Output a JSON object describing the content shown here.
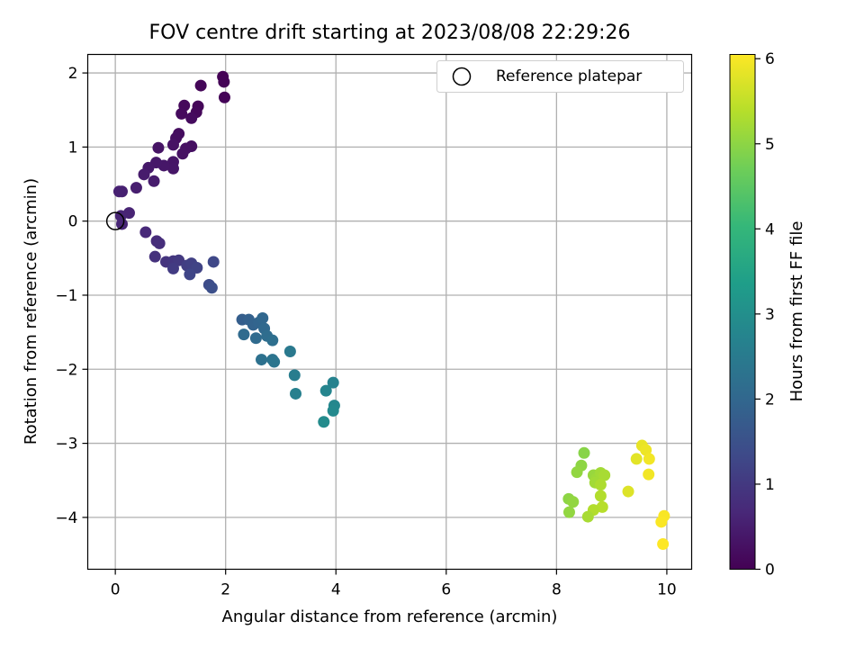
{
  "chart_data": {
    "type": "scatter",
    "title": "FOV centre drift starting at 2023/08/08 22:29:26",
    "xlabel": "Angular distance from reference (arcmin)",
    "ylabel": "Rotation from reference (arcmin)",
    "xlim": [
      -0.5,
      10.45
    ],
    "ylim": [
      -4.7,
      2.25
    ],
    "xticks": [
      0,
      2,
      4,
      6,
      8,
      10
    ],
    "yticks": [
      2,
      1,
      0,
      -1,
      -2,
      -3,
      -4
    ],
    "xtick_labels": [
      "0",
      "2",
      "4",
      "6",
      "8",
      "10"
    ],
    "ytick_labels": [
      "2",
      "1",
      "0",
      "−1",
      "−2",
      "−3",
      "−4"
    ],
    "grid": true,
    "legend": {
      "placement": "top-right",
      "entries": [
        "Reference platepar"
      ]
    },
    "reference_point": {
      "x": 0,
      "y": 0
    },
    "colorbar": {
      "label": "Hours from first FF file",
      "range": [
        0,
        6.05
      ],
      "ticks": [
        0,
        1,
        2,
        3,
        4,
        5,
        6
      ],
      "tick_labels": [
        "0",
        "1",
        "2",
        "3",
        "4",
        "5",
        "6"
      ],
      "colormap": "viridis"
    },
    "points": [
      {
        "x": 1.95,
        "y": 1.95,
        "t": 0.02
      },
      {
        "x": 1.97,
        "y": 1.88,
        "t": 0.04
      },
      {
        "x": 1.98,
        "y": 1.67,
        "t": 0.06
      },
      {
        "x": 1.55,
        "y": 1.83,
        "t": 0.08
      },
      {
        "x": 1.5,
        "y": 1.55,
        "t": 0.1
      },
      {
        "x": 1.47,
        "y": 1.47,
        "t": 0.12
      },
      {
        "x": 1.25,
        "y": 1.56,
        "t": 0.14
      },
      {
        "x": 1.2,
        "y": 1.45,
        "t": 0.16
      },
      {
        "x": 1.38,
        "y": 1.39,
        "t": 0.18
      },
      {
        "x": 1.15,
        "y": 1.18,
        "t": 0.2
      },
      {
        "x": 1.1,
        "y": 1.12,
        "t": 0.22
      },
      {
        "x": 1.38,
        "y": 1.01,
        "t": 0.24
      },
      {
        "x": 1.28,
        "y": 0.98,
        "t": 0.26
      },
      {
        "x": 1.22,
        "y": 0.91,
        "t": 0.28
      },
      {
        "x": 1.05,
        "y": 1.03,
        "t": 0.3
      },
      {
        "x": 0.78,
        "y": 0.99,
        "t": 0.32
      },
      {
        "x": 1.05,
        "y": 0.8,
        "t": 0.34
      },
      {
        "x": 1.05,
        "y": 0.71,
        "t": 0.36
      },
      {
        "x": 0.88,
        "y": 0.75,
        "t": 0.38
      },
      {
        "x": 0.74,
        "y": 0.79,
        "t": 0.4
      },
      {
        "x": 0.6,
        "y": 0.72,
        "t": 0.42
      },
      {
        "x": 0.52,
        "y": 0.63,
        "t": 0.44
      },
      {
        "x": 0.7,
        "y": 0.54,
        "t": 0.46
      },
      {
        "x": 0.38,
        "y": 0.45,
        "t": 0.5
      },
      {
        "x": 0.12,
        "y": 0.4,
        "t": 0.54
      },
      {
        "x": 0.07,
        "y": 0.4,
        "t": 0.56
      },
      {
        "x": 0.25,
        "y": 0.11,
        "t": 0.6
      },
      {
        "x": 0.1,
        "y": 0.07,
        "t": 0.62
      },
      {
        "x": 0.12,
        "y": -0.04,
        "t": 0.64
      },
      {
        "x": 0.55,
        "y": -0.15,
        "t": 0.7
      },
      {
        "x": 0.75,
        "y": -0.27,
        "t": 0.75
      },
      {
        "x": 0.8,
        "y": -0.3,
        "t": 0.8
      },
      {
        "x": 0.72,
        "y": -0.48,
        "t": 0.85
      },
      {
        "x": 0.92,
        "y": -0.55,
        "t": 0.9
      },
      {
        "x": 1.05,
        "y": -0.54,
        "t": 0.95
      },
      {
        "x": 1.15,
        "y": -0.53,
        "t": 1.0
      },
      {
        "x": 1.05,
        "y": -0.64,
        "t": 1.05
      },
      {
        "x": 1.3,
        "y": -0.6,
        "t": 1.1
      },
      {
        "x": 1.38,
        "y": -0.57,
        "t": 1.15
      },
      {
        "x": 1.48,
        "y": -0.63,
        "t": 1.2
      },
      {
        "x": 1.35,
        "y": -0.72,
        "t": 1.25
      },
      {
        "x": 1.78,
        "y": -0.55,
        "t": 1.3
      },
      {
        "x": 1.7,
        "y": -0.86,
        "t": 1.4
      },
      {
        "x": 1.75,
        "y": -0.9,
        "t": 1.45
      },
      {
        "x": 2.3,
        "y": -1.33,
        "t": 1.8
      },
      {
        "x": 2.42,
        "y": -1.33,
        "t": 1.85
      },
      {
        "x": 2.5,
        "y": -1.4,
        "t": 1.9
      },
      {
        "x": 2.6,
        "y": -1.37,
        "t": 1.95
      },
      {
        "x": 2.67,
        "y": -1.31,
        "t": 2.0
      },
      {
        "x": 2.7,
        "y": -1.45,
        "t": 2.05
      },
      {
        "x": 2.55,
        "y": -1.58,
        "t": 2.1
      },
      {
        "x": 2.33,
        "y": -1.53,
        "t": 2.1
      },
      {
        "x": 2.75,
        "y": -1.55,
        "t": 2.15
      },
      {
        "x": 2.85,
        "y": -1.61,
        "t": 2.2
      },
      {
        "x": 2.65,
        "y": -1.87,
        "t": 2.25
      },
      {
        "x": 2.85,
        "y": -1.87,
        "t": 2.3
      },
      {
        "x": 2.88,
        "y": -1.9,
        "t": 2.35
      },
      {
        "x": 3.17,
        "y": -1.76,
        "t": 2.45
      },
      {
        "x": 3.25,
        "y": -2.08,
        "t": 2.55
      },
      {
        "x": 3.27,
        "y": -2.33,
        "t": 2.65
      },
      {
        "x": 3.95,
        "y": -2.18,
        "t": 2.7
      },
      {
        "x": 3.82,
        "y": -2.29,
        "t": 2.75
      },
      {
        "x": 3.97,
        "y": -2.49,
        "t": 2.8
      },
      {
        "x": 3.95,
        "y": -2.56,
        "t": 2.85
      },
      {
        "x": 3.78,
        "y": -2.71,
        "t": 2.9
      },
      {
        "x": 8.5,
        "y": -3.13,
        "t": 4.95
      },
      {
        "x": 8.45,
        "y": -3.3,
        "t": 5.0
      },
      {
        "x": 8.37,
        "y": -3.39,
        "t": 5.05
      },
      {
        "x": 8.67,
        "y": -3.43,
        "t": 5.1
      },
      {
        "x": 8.72,
        "y": -3.48,
        "t": 5.15
      },
      {
        "x": 8.8,
        "y": -3.4,
        "t": 5.2
      },
      {
        "x": 8.87,
        "y": -3.43,
        "t": 5.25
      },
      {
        "x": 8.7,
        "y": -3.53,
        "t": 5.2
      },
      {
        "x": 8.8,
        "y": -3.56,
        "t": 5.3
      },
      {
        "x": 8.8,
        "y": -3.71,
        "t": 5.35
      },
      {
        "x": 8.22,
        "y": -3.75,
        "t": 5.0
      },
      {
        "x": 8.3,
        "y": -3.79,
        "t": 5.05
      },
      {
        "x": 8.83,
        "y": -3.86,
        "t": 5.4
      },
      {
        "x": 8.67,
        "y": -3.9,
        "t": 5.35
      },
      {
        "x": 8.23,
        "y": -3.93,
        "t": 5.05
      },
      {
        "x": 8.57,
        "y": -3.99,
        "t": 5.25
      },
      {
        "x": 9.3,
        "y": -3.65,
        "t": 5.75
      },
      {
        "x": 9.55,
        "y": -3.03,
        "t": 5.85
      },
      {
        "x": 9.62,
        "y": -3.09,
        "t": 5.9
      },
      {
        "x": 9.45,
        "y": -3.21,
        "t": 5.8
      },
      {
        "x": 9.68,
        "y": -3.21,
        "t": 5.95
      },
      {
        "x": 9.67,
        "y": -3.42,
        "t": 5.95
      },
      {
        "x": 9.95,
        "y": -3.98,
        "t": 6.0
      },
      {
        "x": 9.9,
        "y": -4.06,
        "t": 6.02
      },
      {
        "x": 9.93,
        "y": -4.36,
        "t": 6.05
      }
    ]
  },
  "colors": {
    "grid": "#b0b0b0",
    "axes": "#000000",
    "reference_marker": "#000000"
  }
}
